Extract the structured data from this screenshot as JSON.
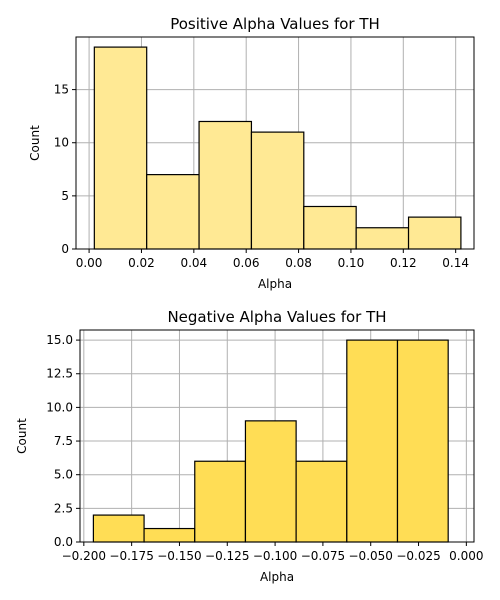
{
  "chart_data": [
    {
      "type": "bar",
      "title": "Positive Alpha Values for TH",
      "xlabel": "Alpha",
      "ylabel": "Count",
      "bar_color": "#ffe994",
      "grid": true,
      "xlim": [
        -0.005,
        0.147
      ],
      "ylim": [
        0,
        19.95
      ],
      "xticks": [
        0.0,
        0.02,
        0.04,
        0.06,
        0.08,
        0.1,
        0.12,
        0.14
      ],
      "xtick_labels": [
        "0.00",
        "0.02",
        "0.04",
        "0.06",
        "0.08",
        "0.10",
        "0.12",
        "0.14"
      ],
      "yticks": [
        0,
        5,
        10,
        15
      ],
      "ytick_labels": [
        "0",
        "5",
        "10",
        "15"
      ],
      "bins": [
        {
          "x0": 0.002,
          "x1": 0.022,
          "count": 19
        },
        {
          "x0": 0.022,
          "x1": 0.042,
          "count": 7
        },
        {
          "x0": 0.042,
          "x1": 0.062,
          "count": 12
        },
        {
          "x0": 0.062,
          "x1": 0.082,
          "count": 11
        },
        {
          "x0": 0.082,
          "x1": 0.102,
          "count": 4
        },
        {
          "x0": 0.102,
          "x1": 0.122,
          "count": 2
        },
        {
          "x0": 0.122,
          "x1": 0.142,
          "count": 3
        }
      ]
    },
    {
      "type": "bar",
      "title": "Negative Alpha Values for TH",
      "xlabel": "Alpha",
      "ylabel": "Count",
      "bar_color": "#ffdd55",
      "grid": true,
      "xlim": [
        -0.202,
        0.004
      ],
      "ylim": [
        0,
        15.75
      ],
      "xticks": [
        -0.2,
        -0.175,
        -0.15,
        -0.125,
        -0.1,
        -0.075,
        -0.05,
        -0.025,
        0.0
      ],
      "xtick_labels": [
        "−0.200",
        "−0.175",
        "−0.150",
        "−0.125",
        "−0.100",
        "−0.075",
        "−0.050",
        "−0.025",
        "0.000"
      ],
      "yticks": [
        0,
        2.5,
        5,
        7.5,
        10,
        12.5,
        15
      ],
      "ytick_labels": [
        "0.0",
        "2.5",
        "5.0",
        "7.5",
        "10.0",
        "12.5",
        "15.0"
      ],
      "bins": [
        {
          "x0": -0.195,
          "x1": -0.1685,
          "count": 2
        },
        {
          "x0": -0.1685,
          "x1": -0.142,
          "count": 1
        },
        {
          "x0": -0.142,
          "x1": -0.1155,
          "count": 6
        },
        {
          "x0": -0.1155,
          "x1": -0.089,
          "count": 9
        },
        {
          "x0": -0.089,
          "x1": -0.0625,
          "count": 6
        },
        {
          "x0": -0.0625,
          "x1": -0.036,
          "count": 15
        },
        {
          "x0": -0.036,
          "x1": -0.0095,
          "count": 15
        }
      ]
    }
  ]
}
